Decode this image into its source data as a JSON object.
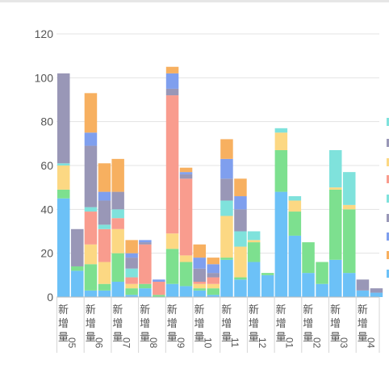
{
  "chart_data": {
    "type": "bar",
    "stacked": true,
    "ylim": [
      0,
      120
    ],
    "yticks": [
      0,
      20,
      40,
      60,
      80,
      100,
      120
    ],
    "grid": true,
    "categories": [
      "新增量05",
      "新增量06",
      "新增量07",
      "新增量08",
      "新增量09",
      "新增量10",
      "新增量11",
      "新增量12",
      "新增量01",
      "新增量02",
      "新增量03",
      "新增量04"
    ],
    "series_colors": [
      "#6cc1f7",
      "#7de08f",
      "#fcd883",
      "#f99c8e",
      "#7fe2dc",
      "#9997b7",
      "#7f9fee",
      "#f7b060"
    ],
    "bars": [
      {
        "cat": 0,
        "stack": [
          45,
          4,
          11,
          0,
          1,
          41,
          0,
          0
        ]
      },
      {
        "cat": 0,
        "stack": [
          12,
          2,
          0,
          0,
          0,
          17,
          0,
          0
        ]
      },
      {
        "cat": 1,
        "stack": [
          3,
          12,
          9,
          15,
          2,
          28,
          6,
          18
        ]
      },
      {
        "cat": 1,
        "stack": [
          3,
          3,
          10,
          15,
          2,
          11,
          4,
          13
        ]
      },
      {
        "cat": 2,
        "stack": [
          7,
          13,
          11,
          5,
          4,
          8,
          0,
          15
        ]
      },
      {
        "cat": 2,
        "stack": [
          1,
          3,
          2,
          3,
          4,
          5,
          2,
          6
        ]
      },
      {
        "cat": 3,
        "stack": [
          4,
          2,
          0,
          18,
          0,
          1,
          1,
          0
        ]
      },
      {
        "cat": 3,
        "stack": [
          0,
          1,
          0,
          6,
          0,
          0,
          1,
          0
        ]
      },
      {
        "cat": 4,
        "stack": [
          6,
          16,
          7,
          63,
          0,
          3,
          7,
          3
        ]
      },
      {
        "cat": 4,
        "stack": [
          5,
          11,
          3,
          35,
          0,
          2,
          1,
          2
        ]
      },
      {
        "cat": 5,
        "stack": [
          3,
          1,
          2,
          1,
          0,
          6,
          5,
          6
        ]
      },
      {
        "cat": 5,
        "stack": [
          1,
          3,
          2,
          3,
          0,
          2,
          4,
          3
        ]
      },
      {
        "cat": 6,
        "stack": [
          17,
          1,
          19,
          0,
          7,
          10,
          9,
          9
        ]
      },
      {
        "cat": 6,
        "stack": [
          8,
          1,
          14,
          0,
          7,
          10,
          6,
          8
        ]
      },
      {
        "cat": 7,
        "stack": [
          16,
          9,
          1,
          0,
          4,
          0,
          0,
          0
        ]
      },
      {
        "cat": 7,
        "stack": [
          10,
          1,
          0,
          0,
          0,
          0,
          0,
          0
        ]
      },
      {
        "cat": 8,
        "stack": [
          48,
          19,
          8,
          0,
          2,
          0,
          0,
          0
        ]
      },
      {
        "cat": 8,
        "stack": [
          28,
          11,
          5,
          0,
          2,
          0,
          0,
          0
        ]
      },
      {
        "cat": 9,
        "stack": [
          11,
          14,
          0,
          0,
          0,
          0,
          0,
          0
        ]
      },
      {
        "cat": 9,
        "stack": [
          6,
          10,
          0,
          0,
          0,
          0,
          0,
          0
        ]
      },
      {
        "cat": 10,
        "stack": [
          17,
          32,
          1,
          0,
          17,
          0,
          0,
          0
        ]
      },
      {
        "cat": 10,
        "stack": [
          11,
          29,
          2,
          0,
          15,
          0,
          0,
          0
        ]
      },
      {
        "cat": 11,
        "stack": [
          3,
          0,
          0,
          0,
          0,
          5,
          0,
          0
        ]
      },
      {
        "cat": 11,
        "stack": [
          2,
          0,
          0,
          0,
          0,
          2,
          0,
          0
        ]
      }
    ],
    "legend_position": "right"
  }
}
